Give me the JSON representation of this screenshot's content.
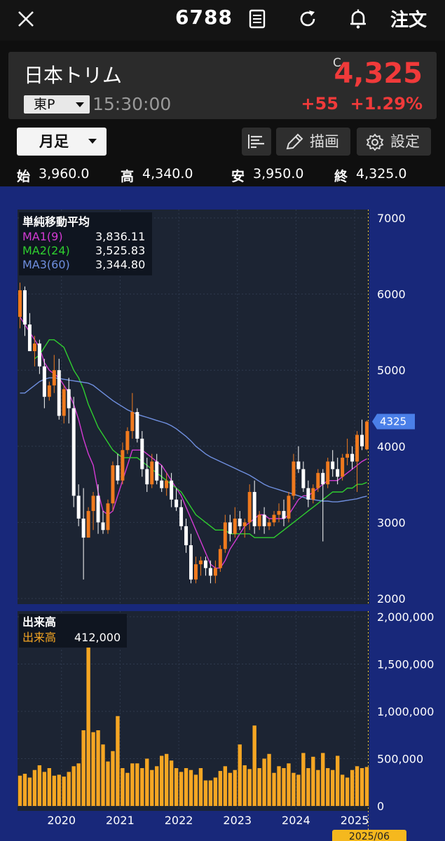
{
  "header": {
    "stock_code": "6788",
    "order_label": "注文",
    "icons": [
      "close-icon",
      "document-icon",
      "refresh-icon",
      "bell-icon"
    ]
  },
  "quote": {
    "name": "日本トリム",
    "market": "東P",
    "time": "15:30:00",
    "close_flag": "C",
    "price": "4,325",
    "change": "+55",
    "change_pct": "+1.29%",
    "up_color": "#f03a3a"
  },
  "toolbar": {
    "period": "月足",
    "draw_label": "描画",
    "settings_label": "設定"
  },
  "ohlc": {
    "open_label": "始",
    "open": "3,960.0",
    "high_label": "高",
    "high": "4,340.0",
    "low_label": "安",
    "low": "3,950.0",
    "close_label": "終",
    "close": "4,325.0"
  },
  "chart_data": {
    "type": "candlestick",
    "interval": "monthly",
    "x_axis_labels": [
      "2020",
      "2021",
      "2022",
      "2023",
      "2024",
      "2025"
    ],
    "current_label": "2025/06",
    "price_axis": {
      "ticks": [
        7000,
        6000,
        5000,
        4000,
        3000,
        2000
      ],
      "ylim": [
        2000,
        7000
      ]
    },
    "last_price_tag": "4325",
    "ma_legend": {
      "title": "単純移動平均",
      "items": [
        {
          "name": "MA1(9)",
          "value": "3,836.11",
          "color": "#d43ad4"
        },
        {
          "name": "MA2(24)",
          "value": "3,525.83",
          "color": "#2fcf2f"
        },
        {
          "name": "MA3(60)",
          "value": "3,344.80",
          "color": "#6f8fdf"
        }
      ]
    },
    "volume_legend": {
      "title": "出来高",
      "name": "出来高",
      "value": "412,000"
    },
    "volume_axis": {
      "ticks": [
        "2,000,000",
        "1,500,000",
        "1,000,000",
        "500,000",
        "0"
      ],
      "ylim": [
        0,
        2000000
      ]
    },
    "candles": [
      [
        5700,
        6150,
        5550,
        6050
      ],
      [
        6050,
        6100,
        5450,
        5600
      ],
      [
        5600,
        5750,
        5250,
        5250
      ],
      [
        5250,
        5450,
        5050,
        5350
      ],
      [
        5350,
        5400,
        4950,
        5050
      ],
      [
        5050,
        5150,
        4500,
        4650
      ],
      [
        4650,
        4850,
        4600,
        4800
      ],
      [
        4800,
        5200,
        4700,
        5000
      ],
      [
        5000,
        5150,
        4350,
        4400
      ],
      [
        4400,
        4800,
        4300,
        4750
      ],
      [
        4750,
        4900,
        4300,
        4500
      ],
      [
        4500,
        4650,
        3200,
        3350
      ],
      [
        3350,
        3500,
        2950,
        3050
      ],
      [
        3050,
        3450,
        2250,
        2800
      ],
      [
        2800,
        3200,
        2800,
        3150
      ],
      [
        3150,
        3400,
        2900,
        3350
      ],
      [
        3350,
        3500,
        2850,
        3000
      ],
      [
        3000,
        3150,
        2850,
        2900
      ],
      [
        2900,
        3300,
        2850,
        3250
      ],
      [
        3250,
        3800,
        3150,
        3750
      ],
      [
        3750,
        3900,
        3500,
        3550
      ],
      [
        3550,
        4050,
        3500,
        3950
      ],
      [
        3950,
        4250,
        3900,
        4200
      ],
      [
        4200,
        4700,
        4100,
        4450
      ],
      [
        4450,
        4500,
        4050,
        4100
      ],
      [
        4100,
        4200,
        3600,
        3700
      ],
      [
        3700,
        3850,
        3400,
        3500
      ],
      [
        3500,
        3900,
        3450,
        3800
      ],
      [
        3800,
        3900,
        3500,
        3550
      ],
      [
        3550,
        3750,
        3400,
        3450
      ],
      [
        3450,
        3650,
        3350,
        3550
      ],
      [
        3550,
        3650,
        3200,
        3300
      ],
      [
        3300,
        3450,
        3150,
        3200
      ],
      [
        3200,
        3300,
        2900,
        2950
      ],
      [
        2950,
        3050,
        2600,
        2700
      ],
      [
        2700,
        2850,
        2200,
        2250
      ],
      [
        2250,
        2550,
        2200,
        2450
      ],
      [
        2450,
        2550,
        2300,
        2500
      ],
      [
        2500,
        2550,
        2300,
        2400
      ],
      [
        2400,
        2500,
        2200,
        2300
      ],
      [
        2300,
        2500,
        2200,
        2400
      ],
      [
        2400,
        2700,
        2350,
        2650
      ],
      [
        2650,
        3100,
        2600,
        3000
      ],
      [
        3000,
        3100,
        2750,
        2850
      ],
      [
        2850,
        3200,
        2800,
        3050
      ],
      [
        3050,
        3150,
        2900,
        2950
      ],
      [
        2950,
        3050,
        2800,
        3000
      ],
      [
        3000,
        3500,
        2900,
        3400
      ],
      [
        3400,
        3550,
        2850,
        2950
      ],
      [
        2950,
        3150,
        2900,
        3100
      ],
      [
        3100,
        3200,
        2850,
        2950
      ],
      [
        2950,
        3050,
        2900,
        3000
      ],
      [
        3000,
        3150,
        2950,
        3100
      ],
      [
        3100,
        3250,
        3000,
        3150
      ],
      [
        3150,
        3300,
        2950,
        3050
      ],
      [
        3050,
        3400,
        3000,
        3350
      ],
      [
        3350,
        3900,
        3300,
        3800
      ],
      [
        3800,
        4000,
        3650,
        3700
      ],
      [
        3700,
        3800,
        3400,
        3450
      ],
      [
        3450,
        3550,
        3200,
        3300
      ],
      [
        3300,
        3500,
        3250,
        3450
      ],
      [
        3450,
        3700,
        3400,
        3650
      ],
      [
        3650,
        3700,
        2750,
        3500
      ],
      [
        3500,
        3850,
        3450,
        3800
      ],
      [
        3800,
        3950,
        3600,
        3700
      ],
      [
        3700,
        3850,
        3500,
        3600
      ],
      [
        3600,
        3900,
        3550,
        3850
      ],
      [
        3850,
        4100,
        3750,
        3900
      ],
      [
        3900,
        4000,
        3700,
        3800
      ],
      [
        3800,
        4200,
        3400,
        4150
      ],
      [
        4150,
        4350,
        3950,
        4000
      ],
      [
        3960,
        4340,
        3950,
        4325
      ]
    ],
    "ma9": [
      5700,
      5600,
      5500,
      5400,
      5300,
      5100,
      5000,
      4950,
      4900,
      4800,
      4700,
      4550,
      4350,
      4100,
      3900,
      3750,
      3400,
      3150,
      3100,
      3150,
      3350,
      3550,
      3750,
      3950,
      3950,
      3950,
      3900,
      3850,
      3800,
      3750,
      3650,
      3550,
      3450,
      3350,
      3200,
      3050,
      2900,
      2750,
      2600,
      2450,
      2400,
      2400,
      2500,
      2650,
      2750,
      2850,
      2950,
      3000,
      3050,
      3100,
      3100,
      3050,
      3050,
      3050,
      3050,
      3100,
      3200,
      3300,
      3350,
      3350,
      3400,
      3450,
      3500,
      3550,
      3550,
      3550,
      3600,
      3650,
      3700,
      3750,
      3800,
      3836
    ],
    "ma24": [
      null,
      null,
      null,
      5150,
      5200,
      5300,
      5400,
      5400,
      5350,
      5300,
      5150,
      5000,
      4900,
      4750,
      4550,
      4400,
      4250,
      4150,
      4050,
      3950,
      3900,
      3850,
      3850,
      3850,
      3850,
      3800,
      3750,
      3700,
      3650,
      3600,
      3550,
      3500,
      3450,
      3400,
      3300,
      3200,
      3100,
      3050,
      3000,
      2950,
      2900,
      2900,
      2900,
      2850,
      2850,
      2850,
      2850,
      2850,
      2800,
      2800,
      2800,
      2800,
      2800,
      2850,
      2900,
      2950,
      3000,
      3050,
      3100,
      3150,
      3200,
      3250,
      3300,
      3350,
      3400,
      3400,
      3400,
      3450,
      3450,
      3500,
      3500,
      3526
    ],
    "ma60": [
      4700,
      4700,
      4750,
      4800,
      4850,
      4880,
      4900,
      4900,
      4890,
      4880,
      4870,
      4860,
      4850,
      4840,
      4830,
      4800,
      4750,
      4700,
      4650,
      4600,
      4560,
      4520,
      4480,
      4450,
      4420,
      4400,
      4380,
      4360,
      4340,
      4320,
      4300,
      4270,
      4230,
      4180,
      4130,
      4070,
      4000,
      3950,
      3900,
      3860,
      3830,
      3800,
      3770,
      3740,
      3710,
      3680,
      3650,
      3620,
      3580,
      3540,
      3500,
      3470,
      3450,
      3430,
      3410,
      3390,
      3370,
      3350,
      3330,
      3310,
      3300,
      3290,
      3280,
      3280,
      3270,
      3270,
      3280,
      3290,
      3300,
      3310,
      3330,
      3345
    ],
    "volume": [
      320000,
      340000,
      300000,
      380000,
      430000,
      360000,
      400000,
      320000,
      330000,
      310000,
      360000,
      420000,
      450000,
      800000,
      1750000,
      780000,
      800000,
      650000,
      470000,
      580000,
      950000,
      400000,
      350000,
      450000,
      450000,
      400000,
      500000,
      380000,
      420000,
      530000,
      550000,
      480000,
      400000,
      360000,
      400000,
      380000,
      330000,
      400000,
      270000,
      270000,
      300000,
      370000,
      420000,
      350000,
      380000,
      650000,
      430000,
      390000,
      850000,
      400000,
      500000,
      550000,
      350000,
      420000,
      400000,
      450000,
      350000,
      330000,
      560000,
      400000,
      520000,
      380000,
      560000,
      400000,
      380000,
      530000,
      330000,
      300000,
      380000,
      420000,
      400000,
      412000
    ],
    "colors": {
      "up": "#f07a1e",
      "down": "#ffffff",
      "volume": "#f5a623",
      "background": "#18287a",
      "plot_background": "#1c2433"
    }
  }
}
